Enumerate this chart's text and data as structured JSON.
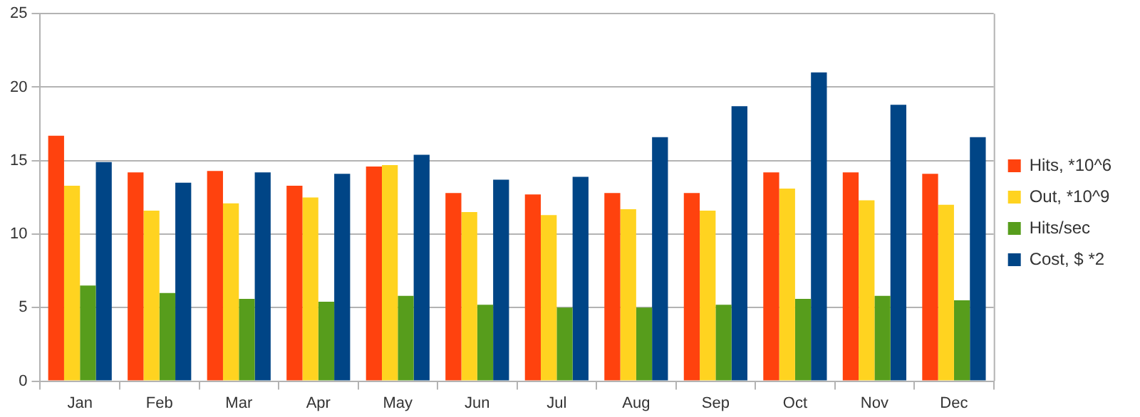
{
  "chart_data": {
    "type": "bar",
    "categories": [
      "Jan",
      "Feb",
      "Mar",
      "Apr",
      "May",
      "Jun",
      "Jul",
      "Aug",
      "Sep",
      "Oct",
      "Nov",
      "Dec"
    ],
    "series": [
      {
        "name": "Hits, *10^6",
        "color": "#ff420e",
        "values": [
          16.7,
          14.2,
          14.3,
          13.3,
          14.6,
          12.8,
          12.7,
          12.8,
          12.8,
          14.2,
          14.2,
          14.1
        ]
      },
      {
        "name": "Out, *10^9",
        "color": "#ffd320",
        "values": [
          13.3,
          11.6,
          12.1,
          12.5,
          14.7,
          11.5,
          11.3,
          11.7,
          11.6,
          13.1,
          12.3,
          12.0
        ]
      },
      {
        "name": "Hits/sec",
        "color": "#579d1c",
        "values": [
          6.5,
          6.0,
          5.6,
          5.4,
          5.8,
          5.2,
          5.0,
          5.0,
          5.2,
          5.6,
          5.8,
          5.5
        ]
      },
      {
        "name": "Cost, $ *2",
        "color": "#004586",
        "values": [
          14.9,
          13.5,
          14.2,
          14.1,
          15.4,
          13.7,
          13.9,
          16.6,
          18.7,
          21.0,
          18.8,
          16.6
        ]
      }
    ],
    "ylim": [
      0,
      25
    ],
    "yticks": [
      0,
      5,
      10,
      15,
      20,
      25
    ],
    "grid": "y",
    "legend": "right"
  }
}
